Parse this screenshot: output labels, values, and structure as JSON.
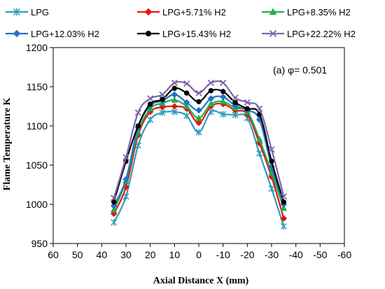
{
  "chart_data": {
    "type": "line",
    "title": "",
    "xlabel": "Axial Distance X (mm)",
    "ylabel": "Flame Temperature K",
    "xlim": [
      60,
      -60
    ],
    "ylim": [
      950,
      1200
    ],
    "x_reversed": true,
    "xticks": [
      60,
      50,
      40,
      30,
      20,
      10,
      0,
      -10,
      -20,
      -30,
      -40,
      -50,
      -60
    ],
    "yticks": [
      950,
      1000,
      1050,
      1100,
      1150,
      1200
    ],
    "grid": false,
    "legend_position": "top",
    "annotation": "(a) φ= 0.501",
    "x": [
      35,
      30,
      25,
      20,
      15,
      10,
      5,
      0,
      -5,
      -10,
      -15,
      -20,
      -25,
      -30,
      -35
    ],
    "series": [
      {
        "name": "LPG",
        "color": "#2E9CBD",
        "marker": "asterisk",
        "values": [
          977,
          1010,
          1075,
          1108,
          1117,
          1118,
          1113,
          1092,
          1118,
          1115,
          1114,
          1110,
          1065,
          1020,
          972
        ]
      },
      {
        "name": "LPG+5.71% H2",
        "color": "#E8140C",
        "marker": "diamond",
        "values": [
          988,
          1022,
          1088,
          1118,
          1124,
          1125,
          1122,
          1104,
          1125,
          1128,
          1120,
          1115,
          1078,
          1035,
          982
        ]
      },
      {
        "name": "LPG+8.35% H2",
        "color": "#1EB04B",
        "marker": "triangle",
        "values": [
          993,
          1030,
          1092,
          1122,
          1129,
          1133,
          1125,
          1110,
          1128,
          1131,
          1123,
          1118,
          1083,
          1040,
          995
        ]
      },
      {
        "name": "LPG+12.03% H2",
        "color": "#1F73C8",
        "marker": "diamond",
        "values": [
          998,
          1032,
          1098,
          1126,
          1132,
          1140,
          1130,
          1120,
          1135,
          1137,
          1126,
          1120,
          1108,
          1048,
          1000
        ]
      },
      {
        "name": "LPG+15.43% H2",
        "color": "#000000",
        "marker": "circle",
        "values": [
          1003,
          1055,
          1100,
          1128,
          1134,
          1148,
          1142,
          1131,
          1145,
          1144,
          1130,
          1122,
          1115,
          1055,
          1003
        ]
      },
      {
        "name": "LPG+22.22% H2",
        "color": "#8264A8",
        "marker": "x",
        "values": [
          1008,
          1060,
          1117,
          1135,
          1140,
          1155,
          1154,
          1142,
          1155,
          1155,
          1136,
          1130,
          1122,
          1070,
          1010
        ]
      }
    ]
  }
}
